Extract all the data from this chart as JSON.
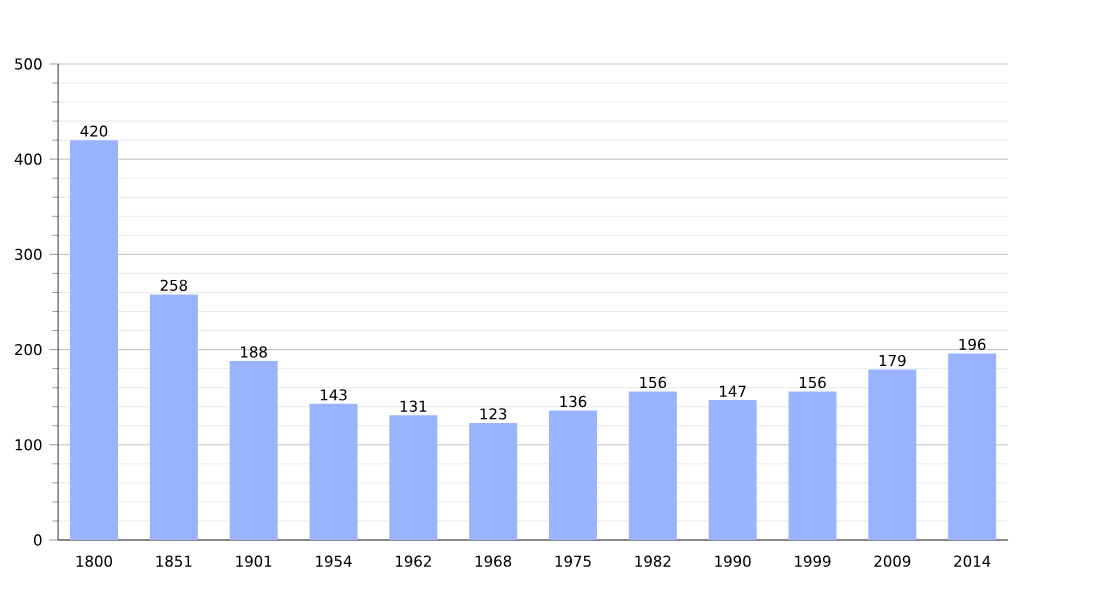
{
  "chart_data": {
    "type": "bar",
    "categories": [
      "1800",
      "1851",
      "1901",
      "1954",
      "1962",
      "1968",
      "1975",
      "1982",
      "1990",
      "1999",
      "2009",
      "2014"
    ],
    "values": [
      420,
      258,
      188,
      143,
      131,
      123,
      136,
      156,
      147,
      156,
      179,
      196
    ],
    "color": "#99b3ff",
    "ylim": [
      0,
      500
    ],
    "yticks": [
      0,
      100,
      200,
      300,
      400,
      500
    ],
    "grid": "y",
    "data_labels": true
  }
}
